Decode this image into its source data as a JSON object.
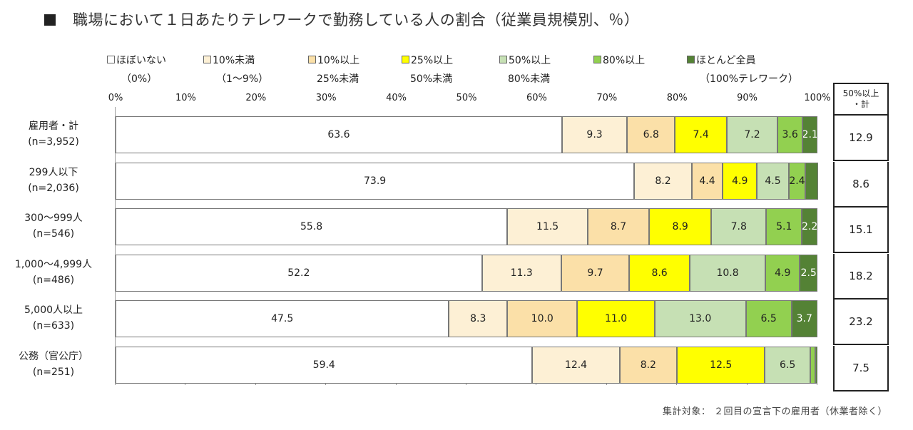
{
  "chart_data": {
    "type": "bar",
    "orientation": "horizontal-stacked-100",
    "title": "職場において１日あたりテレワークで勤務している人の割合（従業員規模別、％）",
    "series": [
      {
        "name": "ほぼいない",
        "name2": "（0%）",
        "color": "#ffffff",
        "values": [
          63.6,
          73.9,
          55.8,
          52.2,
          47.5,
          59.4
        ]
      },
      {
        "name": "10%未満",
        "name2": "（1～9%）",
        "color": "#fdf0d5",
        "values": [
          9.3,
          8.2,
          11.5,
          11.3,
          8.3,
          12.4
        ]
      },
      {
        "name": "10%以上",
        "name2": "25%未満",
        "color": "#fbe0a8",
        "values": [
          6.8,
          4.4,
          8.7,
          9.7,
          10.0,
          8.2
        ]
      },
      {
        "name": "25%以上",
        "name2": "50%未満",
        "color": "#ffff00",
        "values": [
          7.4,
          4.9,
          8.9,
          8.6,
          11.0,
          12.5
        ]
      },
      {
        "name": "50%以上",
        "name2": "80%未満",
        "color": "#c6e0b4",
        "values": [
          7.2,
          4.5,
          7.8,
          10.8,
          13.0,
          6.5
        ]
      },
      {
        "name": "80%以上",
        "name2": "",
        "color": "#92d050",
        "values": [
          3.6,
          2.4,
          5.1,
          4.9,
          6.5,
          0.7
        ]
      },
      {
        "name": "ほとんど全員",
        "name2": "（100%テレワーク）",
        "color": "#548235",
        "values": [
          2.1,
          1.8,
          2.2,
          2.5,
          3.7,
          0.3
        ]
      }
    ],
    "series_labels_shown": [
      [
        true,
        true,
        true,
        true,
        true,
        true,
        true
      ],
      [
        true,
        true,
        true,
        true,
        true,
        true,
        false
      ],
      [
        true,
        true,
        true,
        true,
        true,
        true,
        true
      ],
      [
        true,
        true,
        true,
        true,
        true,
        true,
        true
      ],
      [
        true,
        true,
        true,
        true,
        true,
        true,
        true
      ],
      [
        true,
        true,
        true,
        true,
        true,
        false,
        false
      ]
    ],
    "categories": [
      {
        "line1": "雇用者・計",
        "line2": "(n=3,952)"
      },
      {
        "line1": "299人以下",
        "line2": "(n=2,036)"
      },
      {
        "line1": "300～999人",
        "line2": "(n=546)"
      },
      {
        "line1": "1,000～4,999人",
        "line2": "(n=486)"
      },
      {
        "line1": "5,000人以上",
        "line2": "(n=633)"
      },
      {
        "line1": "公務（官公庁）",
        "line2": "(n=251)"
      }
    ],
    "xlim": [
      0,
      100
    ],
    "xticks": [
      "0%",
      "10%",
      "20%",
      "30%",
      "40%",
      "50%",
      "60%",
      "70%",
      "80%",
      "90%",
      "100%"
    ],
    "summary_column": {
      "header_line1": "50%以上",
      "header_line2": "・計",
      "values": [
        "12.9",
        "8.6",
        "15.1",
        "18.2",
        "23.2",
        "7.5"
      ]
    },
    "note": "集計対象： ２回目の宣言下の雇用者（休業者除く）"
  }
}
